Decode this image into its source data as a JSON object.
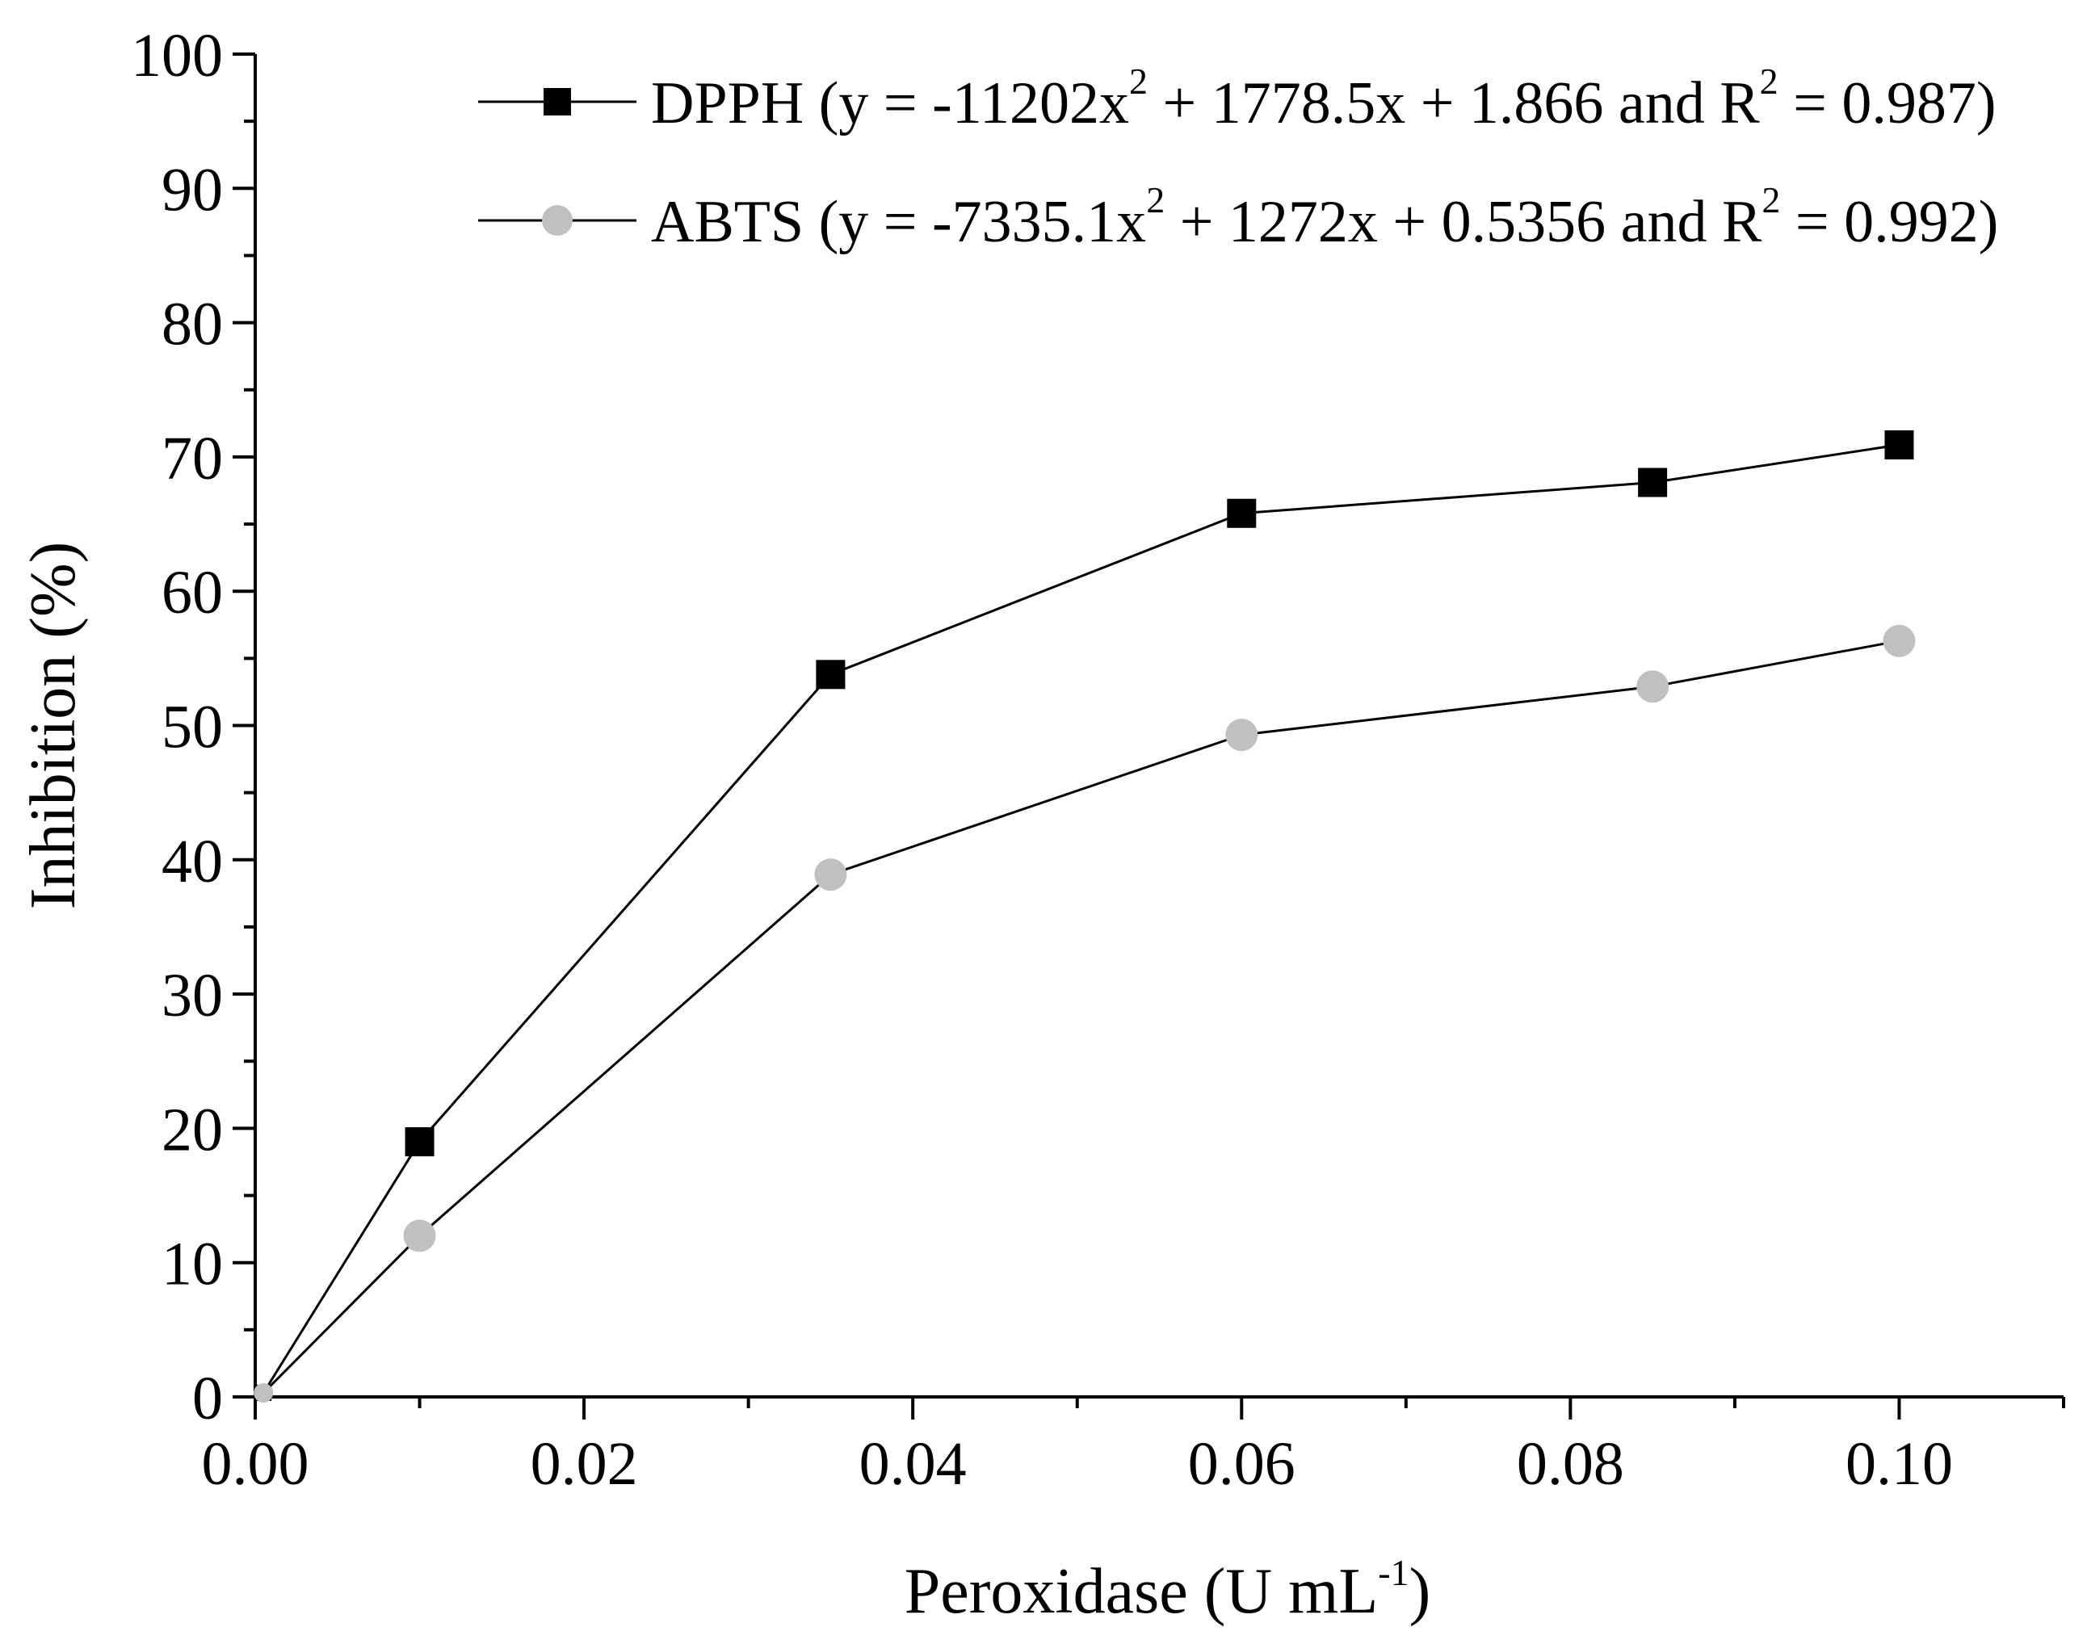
{
  "chart_data": {
    "type": "line",
    "title": "",
    "xlabel": {
      "text": "Peroxidase (U mL",
      "sup": "-1",
      "close": ")"
    },
    "ylabel": "Inhibition (%)",
    "xlim": [
      0,
      0.11
    ],
    "ylim": [
      0,
      100
    ],
    "x_ticks": [
      0.0,
      0.02,
      0.04,
      0.06,
      0.08,
      0.1
    ],
    "x_tick_labels": [
      "0.00",
      "0.02",
      "0.04",
      "0.06",
      "0.08",
      "0.10"
    ],
    "x_minor_step": 0.01,
    "y_ticks": [
      0,
      10,
      20,
      30,
      40,
      50,
      60,
      70,
      80,
      90,
      100
    ],
    "y_tick_labels": [
      "0",
      "10",
      "20",
      "30",
      "40",
      "50",
      "60",
      "70",
      "80",
      "90",
      "100"
    ],
    "y_minor_step": 5,
    "grid": false,
    "legend_position": "top-right",
    "series": [
      {
        "name": "DPPH",
        "marker": "square",
        "color": "#000000",
        "line_color": "#000000",
        "legend_parts": [
          "DPPH (y = -11202x",
          "2",
          " + 1778.5x + 1.866 and R",
          "2",
          " = 0.987)"
        ],
        "x": [
          0.0005,
          0.01,
          0.035,
          0.06,
          0.085,
          0.1
        ],
        "values": [
          0.3,
          19,
          53.8,
          65.8,
          68.1,
          70.9
        ]
      },
      {
        "name": "ABTS",
        "marker": "circle",
        "color": "#c0c0c0",
        "line_color": "#000000",
        "legend_parts": [
          "ABTS (y = -7335.1x",
          "2",
          " + 1272x + 0.5356 and R",
          "2",
          " = 0.992)"
        ],
        "x": [
          0.0005,
          0.01,
          0.035,
          0.06,
          0.085,
          0.1
        ],
        "values": [
          0.3,
          12,
          38.9,
          49.3,
          52.9,
          56.3
        ]
      }
    ]
  }
}
